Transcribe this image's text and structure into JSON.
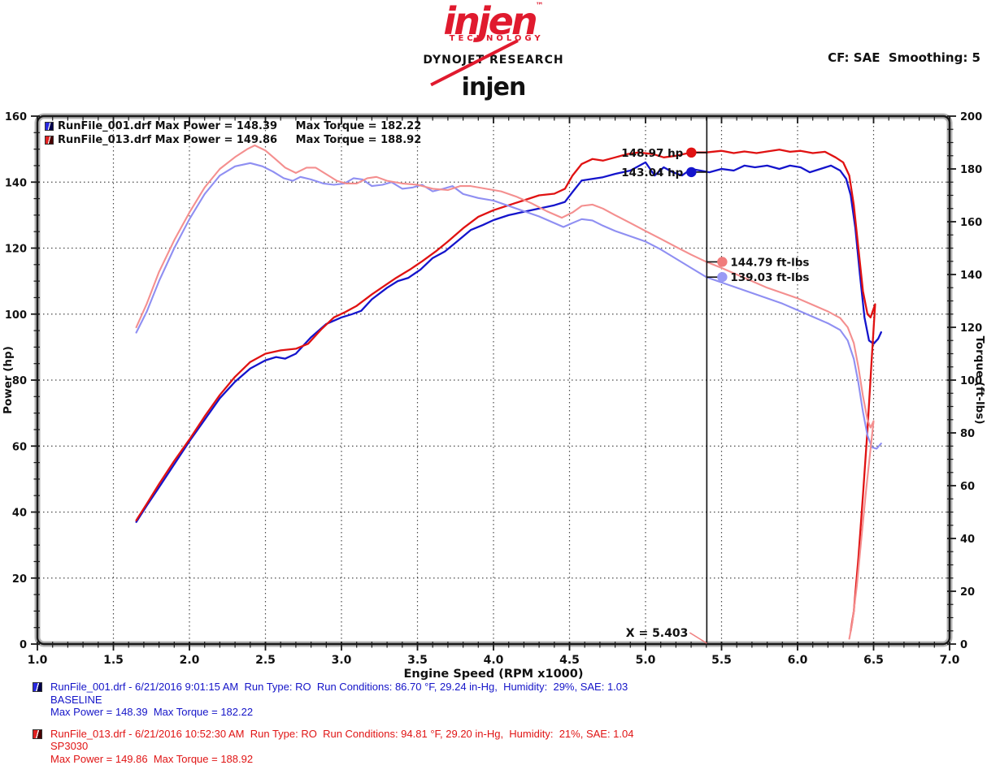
{
  "header": {
    "logo": {
      "brand": "injen",
      "tm": "™",
      "sub": "TECHNOLOGY"
    },
    "dynojet": "DYNOJET RESEARCH",
    "settings": "CF: SAE  Smoothing: 5",
    "title": "injen"
  },
  "legend": {
    "items": [
      {
        "label": "RunFile_001.drf Max Power = 148.39     Max Torque = 182.22",
        "bright": "#2828e0",
        "dark": "#00004a"
      },
      {
        "label": "RunFile_013.drf Max Power = 149.86     Max Torque = 188.92",
        "bright": "#e02020",
        "dark": "#4a0000"
      }
    ]
  },
  "chart_data": {
    "type": "line",
    "title": "injen",
    "x_axis": {
      "label": "Engine Speed (RPM x1000)",
      "min": 1.0,
      "max": 7.0,
      "major": 0.5,
      "minor": 0.1
    },
    "y_left": {
      "label": "Power (hp)",
      "min": 0,
      "max": 160,
      "major": 20,
      "minor": 5
    },
    "y_right": {
      "label": "Torque (ft-lbs)",
      "min": 0,
      "max": 200,
      "major": 20,
      "minor": 5
    },
    "grid": "dotted, horizontal at left-axis majors, vertical at x majors",
    "cursor": {
      "x": 5.403,
      "label": "X = 5.403"
    },
    "series": [
      {
        "name": "RunFile_001 Power (BASELINE)",
        "axis": "left",
        "color": "#1414cc",
        "width": 2.3,
        "points": [
          [
            1.65,
            37
          ],
          [
            1.72,
            42
          ],
          [
            1.8,
            47.5
          ],
          [
            1.9,
            54.5
          ],
          [
            2.0,
            61.5
          ],
          [
            2.1,
            68
          ],
          [
            2.2,
            74.5
          ],
          [
            2.3,
            79.5
          ],
          [
            2.4,
            83.5
          ],
          [
            2.5,
            86
          ],
          [
            2.57,
            87
          ],
          [
            2.63,
            86.5
          ],
          [
            2.7,
            88
          ],
          [
            2.8,
            93
          ],
          [
            2.9,
            97
          ],
          [
            3.0,
            99
          ],
          [
            3.07,
            100
          ],
          [
            3.13,
            101
          ],
          [
            3.2,
            104.5
          ],
          [
            3.3,
            108
          ],
          [
            3.37,
            110
          ],
          [
            3.44,
            111
          ],
          [
            3.52,
            113.5
          ],
          [
            3.6,
            117
          ],
          [
            3.68,
            119
          ],
          [
            3.76,
            122
          ],
          [
            3.85,
            125.5
          ],
          [
            3.93,
            127
          ],
          [
            4.0,
            128.5
          ],
          [
            4.1,
            130
          ],
          [
            4.2,
            131
          ],
          [
            4.3,
            132
          ],
          [
            4.4,
            133
          ],
          [
            4.47,
            134
          ],
          [
            4.52,
            137
          ],
          [
            4.58,
            140.5
          ],
          [
            4.65,
            141
          ],
          [
            4.72,
            141.5
          ],
          [
            4.8,
            142.5
          ],
          [
            4.9,
            143.5
          ],
          [
            5.0,
            146
          ],
          [
            5.06,
            142
          ],
          [
            5.12,
            144.5
          ],
          [
            5.18,
            143
          ],
          [
            5.24,
            142
          ],
          [
            5.3,
            144
          ],
          [
            5.36,
            143.5
          ],
          [
            5.42,
            143
          ],
          [
            5.5,
            144
          ],
          [
            5.58,
            143.5
          ],
          [
            5.65,
            145
          ],
          [
            5.72,
            144.5
          ],
          [
            5.8,
            145
          ],
          [
            5.88,
            144
          ],
          [
            5.95,
            145
          ],
          [
            6.02,
            144.5
          ],
          [
            6.08,
            143
          ],
          [
            6.15,
            144
          ],
          [
            6.22,
            145
          ],
          [
            6.28,
            143.5
          ],
          [
            6.32,
            141
          ],
          [
            6.35,
            136
          ],
          [
            6.38,
            126
          ],
          [
            6.41,
            112
          ],
          [
            6.44,
            99
          ],
          [
            6.47,
            92
          ],
          [
            6.5,
            91
          ],
          [
            6.53,
            92.5
          ],
          [
            6.55,
            94.5
          ]
        ]
      },
      {
        "name": "RunFile_013 Power (SP3030)",
        "axis": "left",
        "color": "#e01212",
        "width": 2.3,
        "points": [
          [
            1.65,
            37.5
          ],
          [
            1.72,
            42.5
          ],
          [
            1.8,
            48.5
          ],
          [
            1.9,
            55.5
          ],
          [
            2.0,
            62
          ],
          [
            2.1,
            69
          ],
          [
            2.2,
            75.5
          ],
          [
            2.3,
            81
          ],
          [
            2.4,
            85.5
          ],
          [
            2.5,
            88
          ],
          [
            2.6,
            89
          ],
          [
            2.7,
            89.5
          ],
          [
            2.78,
            91
          ],
          [
            2.87,
            95.5
          ],
          [
            2.95,
            99
          ],
          [
            3.02,
            100.5
          ],
          [
            3.1,
            102.5
          ],
          [
            3.2,
            106
          ],
          [
            3.28,
            108.5
          ],
          [
            3.36,
            111
          ],
          [
            3.45,
            113.5
          ],
          [
            3.53,
            116
          ],
          [
            3.62,
            119
          ],
          [
            3.7,
            122
          ],
          [
            3.8,
            126
          ],
          [
            3.9,
            129.5
          ],
          [
            4.0,
            131.5
          ],
          [
            4.1,
            133
          ],
          [
            4.2,
            134.5
          ],
          [
            4.3,
            136
          ],
          [
            4.4,
            136.5
          ],
          [
            4.47,
            138
          ],
          [
            4.52,
            142
          ],
          [
            4.58,
            145.5
          ],
          [
            4.65,
            147
          ],
          [
            4.72,
            146.5
          ],
          [
            4.8,
            147.5
          ],
          [
            4.88,
            148.5
          ],
          [
            4.95,
            149
          ],
          [
            5.05,
            148.5
          ],
          [
            5.12,
            147.5
          ],
          [
            5.2,
            148
          ],
          [
            5.3,
            149
          ],
          [
            5.4,
            149
          ],
          [
            5.5,
            149.5
          ],
          [
            5.58,
            148.8
          ],
          [
            5.65,
            149.3
          ],
          [
            5.73,
            148.8
          ],
          [
            5.8,
            149.3
          ],
          [
            5.88,
            149.86
          ],
          [
            5.95,
            149.2
          ],
          [
            6.02,
            149.5
          ],
          [
            6.1,
            148.8
          ],
          [
            6.18,
            149.2
          ],
          [
            6.25,
            147.5
          ],
          [
            6.3,
            146
          ],
          [
            6.34,
            142
          ],
          [
            6.37,
            133
          ],
          [
            6.4,
            120
          ],
          [
            6.43,
            107
          ],
          [
            6.46,
            100
          ],
          [
            6.48,
            99
          ],
          [
            6.51,
            103
          ],
          [
            6.49,
            88
          ],
          [
            6.46,
            65
          ],
          [
            6.43,
            45
          ],
          [
            6.4,
            26
          ],
          [
            6.37,
            10
          ],
          [
            6.35,
            4
          ]
        ]
      },
      {
        "name": "RunFile_001 Torque (BASELINE)",
        "axis": "right",
        "color": "#8f8ff2",
        "width": 2.1,
        "points": [
          [
            1.65,
            118
          ],
          [
            1.72,
            126
          ],
          [
            1.8,
            137.5
          ],
          [
            1.9,
            150
          ],
          [
            2.0,
            161
          ],
          [
            2.1,
            170.5
          ],
          [
            2.2,
            177.5
          ],
          [
            2.3,
            181
          ],
          [
            2.4,
            182.22
          ],
          [
            2.48,
            181
          ],
          [
            2.55,
            179
          ],
          [
            2.62,
            176.5
          ],
          [
            2.68,
            175.5
          ],
          [
            2.73,
            177
          ],
          [
            2.8,
            176
          ],
          [
            2.88,
            174.5
          ],
          [
            2.95,
            174
          ],
          [
            3.02,
            174.5
          ],
          [
            3.08,
            176.5
          ],
          [
            3.14,
            176
          ],
          [
            3.2,
            173.5
          ],
          [
            3.27,
            174
          ],
          [
            3.33,
            175
          ],
          [
            3.4,
            172.5
          ],
          [
            3.47,
            173
          ],
          [
            3.53,
            174
          ],
          [
            3.6,
            171.5
          ],
          [
            3.67,
            172.5
          ],
          [
            3.73,
            173.5
          ],
          [
            3.8,
            170.5
          ],
          [
            3.9,
            169
          ],
          [
            4.0,
            168
          ],
          [
            4.1,
            166
          ],
          [
            4.2,
            164
          ],
          [
            4.3,
            162
          ],
          [
            4.4,
            159.5
          ],
          [
            4.46,
            158
          ],
          [
            4.52,
            159.5
          ],
          [
            4.58,
            161
          ],
          [
            4.65,
            160.5
          ],
          [
            4.72,
            158.5
          ],
          [
            4.8,
            156.5
          ],
          [
            4.9,
            154.5
          ],
          [
            5.0,
            152.5
          ],
          [
            5.1,
            149.5
          ],
          [
            5.2,
            146
          ],
          [
            5.3,
            142.5
          ],
          [
            5.4,
            139.03
          ],
          [
            5.5,
            137
          ],
          [
            5.6,
            135
          ],
          [
            5.7,
            133
          ],
          [
            5.8,
            131
          ],
          [
            5.9,
            129
          ],
          [
            6.0,
            126.5
          ],
          [
            6.1,
            124
          ],
          [
            6.2,
            121.5
          ],
          [
            6.28,
            119
          ],
          [
            6.33,
            115
          ],
          [
            6.37,
            108
          ],
          [
            6.4,
            99
          ],
          [
            6.43,
            88
          ],
          [
            6.46,
            79
          ],
          [
            6.49,
            74.5
          ],
          [
            6.52,
            74
          ],
          [
            6.55,
            76
          ]
        ]
      },
      {
        "name": "RunFile_013 Torque (SP3030)",
        "axis": "right",
        "color": "#f48f8f",
        "width": 2.1,
        "points": [
          [
            1.65,
            120
          ],
          [
            1.72,
            129
          ],
          [
            1.8,
            141
          ],
          [
            1.9,
            153
          ],
          [
            2.0,
            163.5
          ],
          [
            2.1,
            173
          ],
          [
            2.2,
            180
          ],
          [
            2.3,
            184.5
          ],
          [
            2.38,
            187.5
          ],
          [
            2.43,
            188.92
          ],
          [
            2.5,
            187
          ],
          [
            2.57,
            183.5
          ],
          [
            2.63,
            180.5
          ],
          [
            2.7,
            178.5
          ],
          [
            2.77,
            180.5
          ],
          [
            2.83,
            180.5
          ],
          [
            2.9,
            178
          ],
          [
            2.97,
            175.5
          ],
          [
            3.03,
            174.5
          ],
          [
            3.1,
            174.5
          ],
          [
            3.17,
            176.5
          ],
          [
            3.23,
            177
          ],
          [
            3.3,
            175.5
          ],
          [
            3.4,
            174.5
          ],
          [
            3.5,
            174
          ],
          [
            3.6,
            172.5
          ],
          [
            3.7,
            172
          ],
          [
            3.78,
            173.5
          ],
          [
            3.85,
            173.5
          ],
          [
            3.95,
            172.5
          ],
          [
            4.05,
            171.5
          ],
          [
            4.15,
            169.5
          ],
          [
            4.25,
            167
          ],
          [
            4.35,
            164
          ],
          [
            4.45,
            161.5
          ],
          [
            4.52,
            163.5
          ],
          [
            4.58,
            166
          ],
          [
            4.65,
            166.5
          ],
          [
            4.72,
            165
          ],
          [
            4.8,
            162.5
          ],
          [
            4.9,
            159.5
          ],
          [
            5.0,
            156.5
          ],
          [
            5.1,
            153.5
          ],
          [
            5.2,
            150.5
          ],
          [
            5.3,
            147.5
          ],
          [
            5.4,
            144.79
          ],
          [
            5.5,
            142.5
          ],
          [
            5.6,
            140
          ],
          [
            5.7,
            137.5
          ],
          [
            5.8,
            135
          ],
          [
            5.9,
            133
          ],
          [
            6.0,
            131
          ],
          [
            6.1,
            128.5
          ],
          [
            6.2,
            126
          ],
          [
            6.28,
            123.5
          ],
          [
            6.33,
            120
          ],
          [
            6.37,
            114
          ],
          [
            6.4,
            105
          ],
          [
            6.43,
            94
          ],
          [
            6.46,
            85
          ],
          [
            6.48,
            82
          ],
          [
            6.5,
            84.5
          ],
          [
            6.48,
            74
          ],
          [
            6.45,
            58
          ],
          [
            6.42,
            40
          ],
          [
            6.39,
            22
          ],
          [
            6.36,
            8
          ],
          [
            6.34,
            2
          ]
        ]
      }
    ],
    "annotations": [
      {
        "label": "148.97 hp",
        "axis": "left",
        "value": 148.97,
        "color": "#e01212",
        "side": "left"
      },
      {
        "label": "143.04 hp",
        "axis": "left",
        "value": 143.04,
        "color": "#1414cc",
        "side": "left"
      },
      {
        "label": "144.79 ft-lbs",
        "axis": "right",
        "value": 144.79,
        "color": "#f07c7c",
        "side": "right"
      },
      {
        "label": "139.03 ft-lbs",
        "axis": "right",
        "value": 139.03,
        "color": "#9a9af5",
        "side": "right"
      }
    ]
  },
  "runs": [
    {
      "color": "#1414c8",
      "bright": "#2828e0",
      "dark": "#00004a",
      "line1": "RunFile_001.drf - 6/21/2016 9:01:15 AM  Run Type: RO  Run Conditions: 86.70 °F, 29.24 in-Hg,  Humidity:  29%, SAE: 1.03",
      "line2": "BASELINE",
      "line3": "Max Power = 148.39  Max Torque = 182.22"
    },
    {
      "color": "#e01414",
      "bright": "#e02020",
      "dark": "#4a0000",
      "line1": "RunFile_013.drf - 6/21/2016 10:52:30 AM  Run Type: RO  Run Conditions: 94.81 °F, 29.20 in-Hg,  Humidity:  21%, SAE: 1.04",
      "line2": "SP3030",
      "line3": "Max Power = 149.86  Max Torque = 188.92"
    }
  ]
}
